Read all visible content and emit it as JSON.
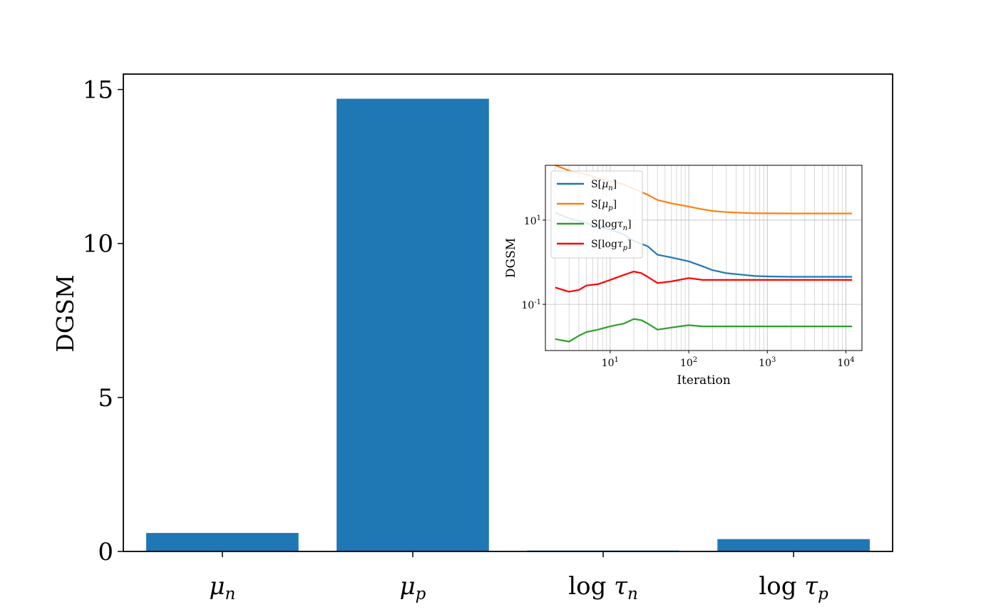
{
  "colors": {
    "bar": "#1f77b4",
    "mu_n": "#1f77b4",
    "mu_p": "#ff7f0e",
    "log_tau_n": "#2ca02c",
    "log_tau_p": "#ff0000",
    "axis": "#000000",
    "grid": "#b0b0b0"
  },
  "chart_data": [
    {
      "type": "bar",
      "ylabel": "DGSM",
      "xlabel": "",
      "ylim": [
        0,
        15.5
      ],
      "yticks": [
        0,
        5,
        10,
        15
      ],
      "ytick_labels": [
        "0",
        "5",
        "10",
        "15"
      ],
      "categories": [
        {
          "base": "μ",
          "sub": "n"
        },
        {
          "base": "μ",
          "sub": "p"
        },
        {
          "pre": "log ",
          "base": "τ",
          "sub": "n"
        },
        {
          "pre": "log ",
          "base": "τ",
          "sub": "p"
        }
      ],
      "values": [
        0.6,
        14.7,
        0.03,
        0.4
      ]
    },
    {
      "type": "line",
      "inset": true,
      "xlabel": "Iteration",
      "ylabel": "DGSM",
      "xscale": "log",
      "yscale": "log",
      "xlim": [
        1.5,
        16000
      ],
      "ylim": [
        0.008,
        200
      ],
      "xticks": [
        10,
        100,
        1000,
        10000
      ],
      "xtick_labels": [
        {
          "base": "10",
          "exp": "1"
        },
        {
          "base": "10",
          "exp": "2"
        },
        {
          "base": "10",
          "exp": "3"
        },
        {
          "base": "10",
          "exp": "4"
        }
      ],
      "yticks": [
        0.1,
        10
      ],
      "ytick_labels": [
        {
          "base": "10",
          "exp": "-1"
        },
        {
          "base": "10",
          "exp": "1"
        }
      ],
      "grid": true,
      "legend_placement": "upper-left",
      "series": [
        {
          "name": "S[μn]",
          "label": {
            "pre": "S[",
            "base": "μ",
            "sub": "n",
            "post": "]"
          },
          "color_key": "mu_n",
          "x": [
            2,
            3,
            4,
            5,
            7,
            10,
            15,
            20,
            30,
            40,
            60,
            100,
            150,
            200,
            300,
            500,
            700,
            1000,
            2000,
            5000,
            12000
          ],
          "y": [
            15,
            11,
            9.5,
            8.5,
            7,
            6,
            4.5,
            3.2,
            2.4,
            1.5,
            1.3,
            1.05,
            0.8,
            0.65,
            0.55,
            0.5,
            0.47,
            0.46,
            0.45,
            0.45,
            0.45
          ]
        },
        {
          "name": "S[μp]",
          "label": {
            "pre": "S[",
            "base": "μ",
            "sub": "p",
            "post": "]"
          },
          "color_key": "mu_p",
          "x": [
            2,
            3,
            5,
            7,
            10,
            15,
            20,
            30,
            40,
            60,
            100,
            150,
            200,
            300,
            500,
            700,
            1000,
            2000,
            5000,
            12000
          ],
          "y": [
            200,
            150,
            120,
            100,
            85,
            70,
            55,
            40,
            30,
            25,
            21,
            18,
            16.5,
            15.5,
            14.8,
            14.5,
            14.5,
            14.4,
            14.4,
            14.4
          ]
        },
        {
          "name": "S[logτn]",
          "label": {
            "pre": "S[log",
            "base": "τ",
            "sub": "n",
            "post": "]"
          },
          "color_key": "log_tau_n",
          "x": [
            2,
            3,
            4,
            5,
            7,
            10,
            15,
            20,
            25,
            30,
            40,
            60,
            100,
            150,
            300,
            1000,
            5000,
            12000
          ],
          "y": [
            0.015,
            0.013,
            0.018,
            0.022,
            0.025,
            0.03,
            0.035,
            0.045,
            0.042,
            0.035,
            0.025,
            0.028,
            0.032,
            0.03,
            0.03,
            0.03,
            0.03,
            0.03
          ]
        },
        {
          "name": "S[logτp]",
          "label": {
            "pre": "S[log",
            "base": "τ",
            "sub": "p",
            "post": "]"
          },
          "color_key": "log_tau_p",
          "x": [
            2,
            3,
            4,
            5,
            7,
            10,
            15,
            20,
            25,
            30,
            40,
            60,
            100,
            150,
            300,
            1000,
            5000,
            12000
          ],
          "y": [
            0.25,
            0.2,
            0.22,
            0.28,
            0.3,
            0.38,
            0.5,
            0.6,
            0.55,
            0.45,
            0.32,
            0.35,
            0.42,
            0.38,
            0.38,
            0.38,
            0.38,
            0.38
          ]
        }
      ]
    }
  ]
}
